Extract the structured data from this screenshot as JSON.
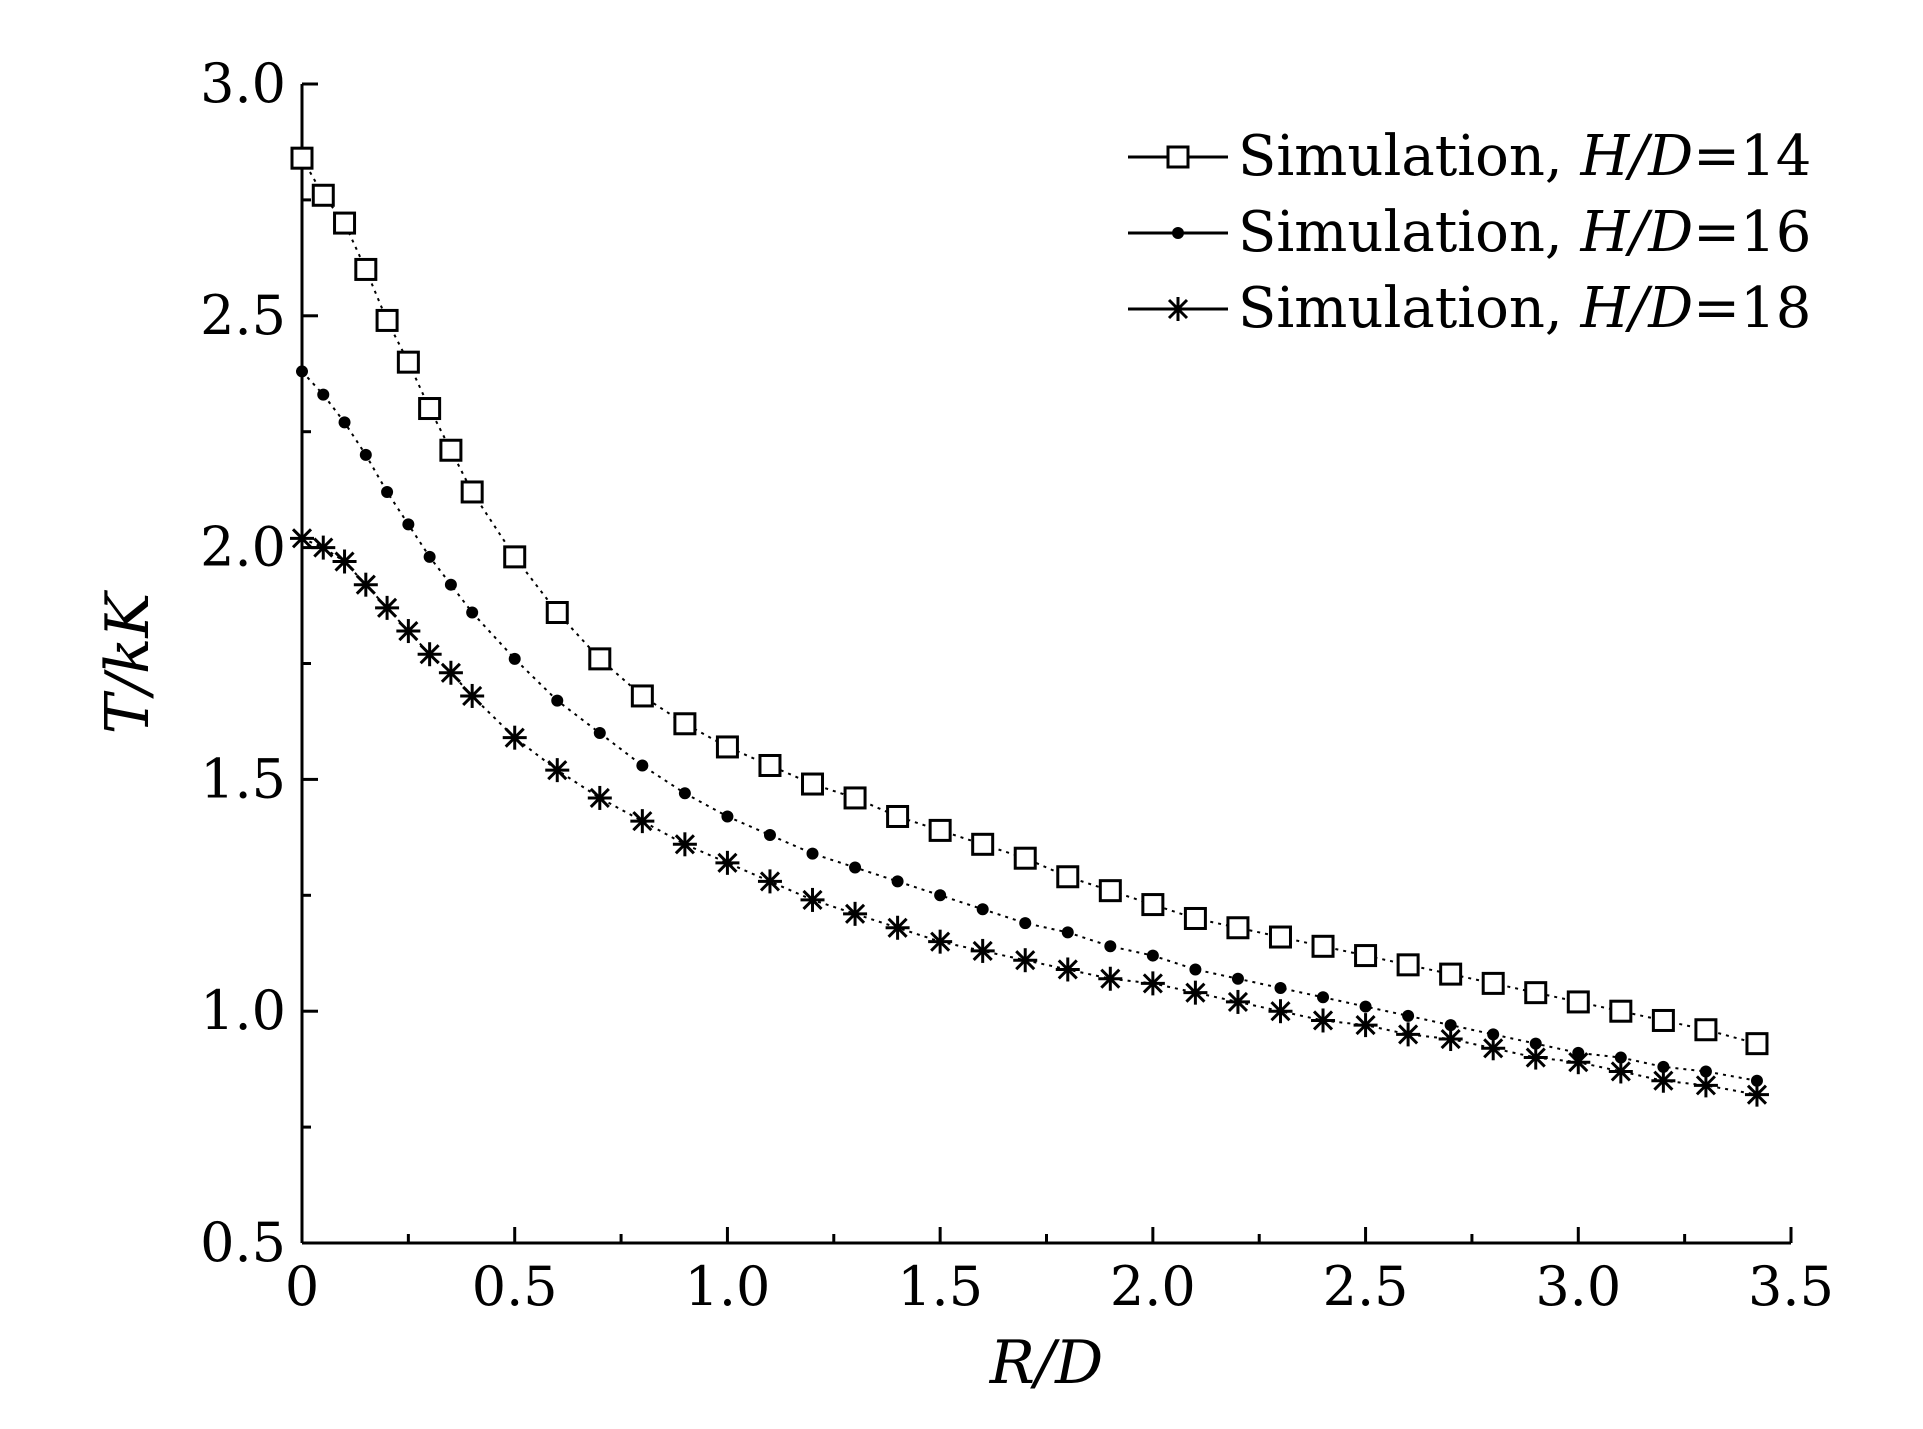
{
  "chart_data": {
    "type": "scatter",
    "xlabel": "R/D",
    "ylabel": "T/kK",
    "xlim": [
      0,
      3.5
    ],
    "ylim": [
      0.5,
      3.0
    ],
    "xticks": [
      "0",
      "0.5",
      "1.0",
      "1.5",
      "2.0",
      "2.5",
      "3.0",
      "3.5"
    ],
    "yticks": [
      "0.5",
      "1.0",
      "1.5",
      "2.0",
      "2.5",
      "3.0"
    ],
    "grid": false,
    "legend_position": "top-right",
    "series": [
      {
        "name": "Simulation, H/D=14",
        "legend_prefix": "Simulation, ",
        "legend_var": "H/D",
        "legend_value": "=14",
        "marker": "square-open",
        "color": "#000000",
        "points": [
          [
            0,
            2.84
          ],
          [
            0.05,
            2.76
          ],
          [
            0.1,
            2.7
          ],
          [
            0.15,
            2.6
          ],
          [
            0.2,
            2.49
          ],
          [
            0.25,
            2.4
          ],
          [
            0.3,
            2.3
          ],
          [
            0.35,
            2.21
          ],
          [
            0.4,
            2.12
          ],
          [
            0.5,
            1.98
          ],
          [
            0.6,
            1.86
          ],
          [
            0.7,
            1.76
          ],
          [
            0.8,
            1.68
          ],
          [
            0.9,
            1.62
          ],
          [
            1.0,
            1.57
          ],
          [
            1.1,
            1.53
          ],
          [
            1.2,
            1.49
          ],
          [
            1.3,
            1.46
          ],
          [
            1.4,
            1.42
          ],
          [
            1.5,
            1.39
          ],
          [
            1.6,
            1.36
          ],
          [
            1.7,
            1.33
          ],
          [
            1.8,
            1.29
          ],
          [
            1.9,
            1.26
          ],
          [
            2.0,
            1.23
          ],
          [
            2.1,
            1.2
          ],
          [
            2.2,
            1.18
          ],
          [
            2.3,
            1.16
          ],
          [
            2.4,
            1.14
          ],
          [
            2.5,
            1.12
          ],
          [
            2.6,
            1.1
          ],
          [
            2.7,
            1.08
          ],
          [
            2.8,
            1.06
          ],
          [
            2.9,
            1.04
          ],
          [
            3.0,
            1.02
          ],
          [
            3.1,
            1.0
          ],
          [
            3.2,
            0.98
          ],
          [
            3.3,
            0.96
          ],
          [
            3.42,
            0.93
          ]
        ]
      },
      {
        "name": "Simulation, H/D=16",
        "legend_prefix": "Simulation, ",
        "legend_var": "H/D",
        "legend_value": "=16",
        "marker": "dot",
        "color": "#000000",
        "points": [
          [
            0,
            2.38
          ],
          [
            0.05,
            2.33
          ],
          [
            0.1,
            2.27
          ],
          [
            0.15,
            2.2
          ],
          [
            0.2,
            2.12
          ],
          [
            0.25,
            2.05
          ],
          [
            0.3,
            1.98
          ],
          [
            0.35,
            1.92
          ],
          [
            0.4,
            1.86
          ],
          [
            0.5,
            1.76
          ],
          [
            0.6,
            1.67
          ],
          [
            0.7,
            1.6
          ],
          [
            0.8,
            1.53
          ],
          [
            0.9,
            1.47
          ],
          [
            1.0,
            1.42
          ],
          [
            1.1,
            1.38
          ],
          [
            1.2,
            1.34
          ],
          [
            1.3,
            1.31
          ],
          [
            1.4,
            1.28
          ],
          [
            1.5,
            1.25
          ],
          [
            1.6,
            1.22
          ],
          [
            1.7,
            1.19
          ],
          [
            1.8,
            1.17
          ],
          [
            1.9,
            1.14
          ],
          [
            2.0,
            1.12
          ],
          [
            2.1,
            1.09
          ],
          [
            2.2,
            1.07
          ],
          [
            2.3,
            1.05
          ],
          [
            2.4,
            1.03
          ],
          [
            2.5,
            1.01
          ],
          [
            2.6,
            0.99
          ],
          [
            2.7,
            0.97
          ],
          [
            2.8,
            0.95
          ],
          [
            2.9,
            0.93
          ],
          [
            3.0,
            0.91
          ],
          [
            3.1,
            0.9
          ],
          [
            3.2,
            0.88
          ],
          [
            3.3,
            0.87
          ],
          [
            3.42,
            0.85
          ]
        ]
      },
      {
        "name": "Simulation, H/D=18",
        "legend_prefix": "Simulation, ",
        "legend_var": "H/D",
        "legend_value": "=18",
        "marker": "star",
        "color": "#000000",
        "points": [
          [
            0,
            2.02
          ],
          [
            0.05,
            2.0
          ],
          [
            0.1,
            1.97
          ],
          [
            0.15,
            1.92
          ],
          [
            0.2,
            1.87
          ],
          [
            0.25,
            1.82
          ],
          [
            0.3,
            1.77
          ],
          [
            0.35,
            1.73
          ],
          [
            0.4,
            1.68
          ],
          [
            0.5,
            1.59
          ],
          [
            0.6,
            1.52
          ],
          [
            0.7,
            1.46
          ],
          [
            0.8,
            1.41
          ],
          [
            0.9,
            1.36
          ],
          [
            1.0,
            1.32
          ],
          [
            1.1,
            1.28
          ],
          [
            1.2,
            1.24
          ],
          [
            1.3,
            1.21
          ],
          [
            1.4,
            1.18
          ],
          [
            1.5,
            1.15
          ],
          [
            1.6,
            1.13
          ],
          [
            1.7,
            1.11
          ],
          [
            1.8,
            1.09
          ],
          [
            1.9,
            1.07
          ],
          [
            2.0,
            1.06
          ],
          [
            2.1,
            1.04
          ],
          [
            2.2,
            1.02
          ],
          [
            2.3,
            1.0
          ],
          [
            2.4,
            0.98
          ],
          [
            2.5,
            0.97
          ],
          [
            2.6,
            0.95
          ],
          [
            2.7,
            0.94
          ],
          [
            2.8,
            0.92
          ],
          [
            2.9,
            0.9
          ],
          [
            3.0,
            0.89
          ],
          [
            3.1,
            0.87
          ],
          [
            3.2,
            0.85
          ],
          [
            3.3,
            0.84
          ],
          [
            3.42,
            0.82
          ]
        ]
      }
    ]
  }
}
